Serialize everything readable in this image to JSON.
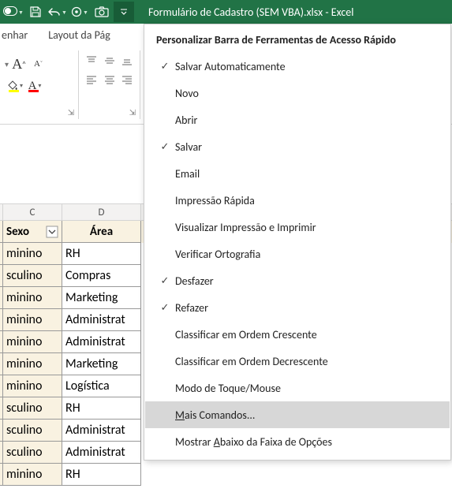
{
  "titlebar": {
    "title": "Formulário de Cadastro (SEM VBA).xlsx  -  Excel"
  },
  "ribbon": {
    "tab_desenhar_partial": "enhar",
    "tab_layout": "Layout da Pág"
  },
  "menu": {
    "title": "Personalizar Barra de Ferramentas de Acesso Rápido",
    "items": [
      {
        "label": "Salvar Automaticamente",
        "checked": true
      },
      {
        "label": "Novo",
        "checked": false
      },
      {
        "label": "Abrir",
        "checked": false
      },
      {
        "label": "Salvar",
        "checked": true
      },
      {
        "label": "Email",
        "checked": false
      },
      {
        "label": "Impressão Rápida",
        "checked": false
      },
      {
        "label": "Visualizar Impressão e Imprimir",
        "checked": false
      },
      {
        "label": "Verificar Ortografia",
        "checked": false
      },
      {
        "label": "Desfazer",
        "checked": true
      },
      {
        "label": "Refazer",
        "checked": true
      },
      {
        "label": "Classificar em Ordem Crescente",
        "checked": false
      },
      {
        "label": "Classificar em Ordem Decrescente",
        "checked": false
      },
      {
        "label": "Modo de Toque/Mouse",
        "checked": false
      }
    ],
    "more_commands_prefix": "M",
    "more_commands_rest": "ais Comandos...",
    "show_below_prefix": "Mostrar ",
    "show_below_ul": "A",
    "show_below_rest": "baixo da Faixa de Opções"
  },
  "columns": {
    "c": "C",
    "d": "D"
  },
  "table": {
    "header_sexo": "Sexo",
    "header_area": "Área",
    "rows": [
      {
        "sexo": "minino",
        "area": "RH"
      },
      {
        "sexo": "sculino",
        "area": "Compras"
      },
      {
        "sexo": "minino",
        "area": "Marketing"
      },
      {
        "sexo": "minino",
        "area": "Administrat"
      },
      {
        "sexo": "minino",
        "area": "Administrat"
      },
      {
        "sexo": "minino",
        "area": "Marketing"
      },
      {
        "sexo": "minino",
        "area": "Logística"
      },
      {
        "sexo": "sculino",
        "area": "RH"
      },
      {
        "sexo": "sculino",
        "area": "Administrat"
      },
      {
        "sexo": "sculino",
        "area": "Administrat"
      },
      {
        "sexo": "minino",
        "area": "RH"
      }
    ]
  }
}
